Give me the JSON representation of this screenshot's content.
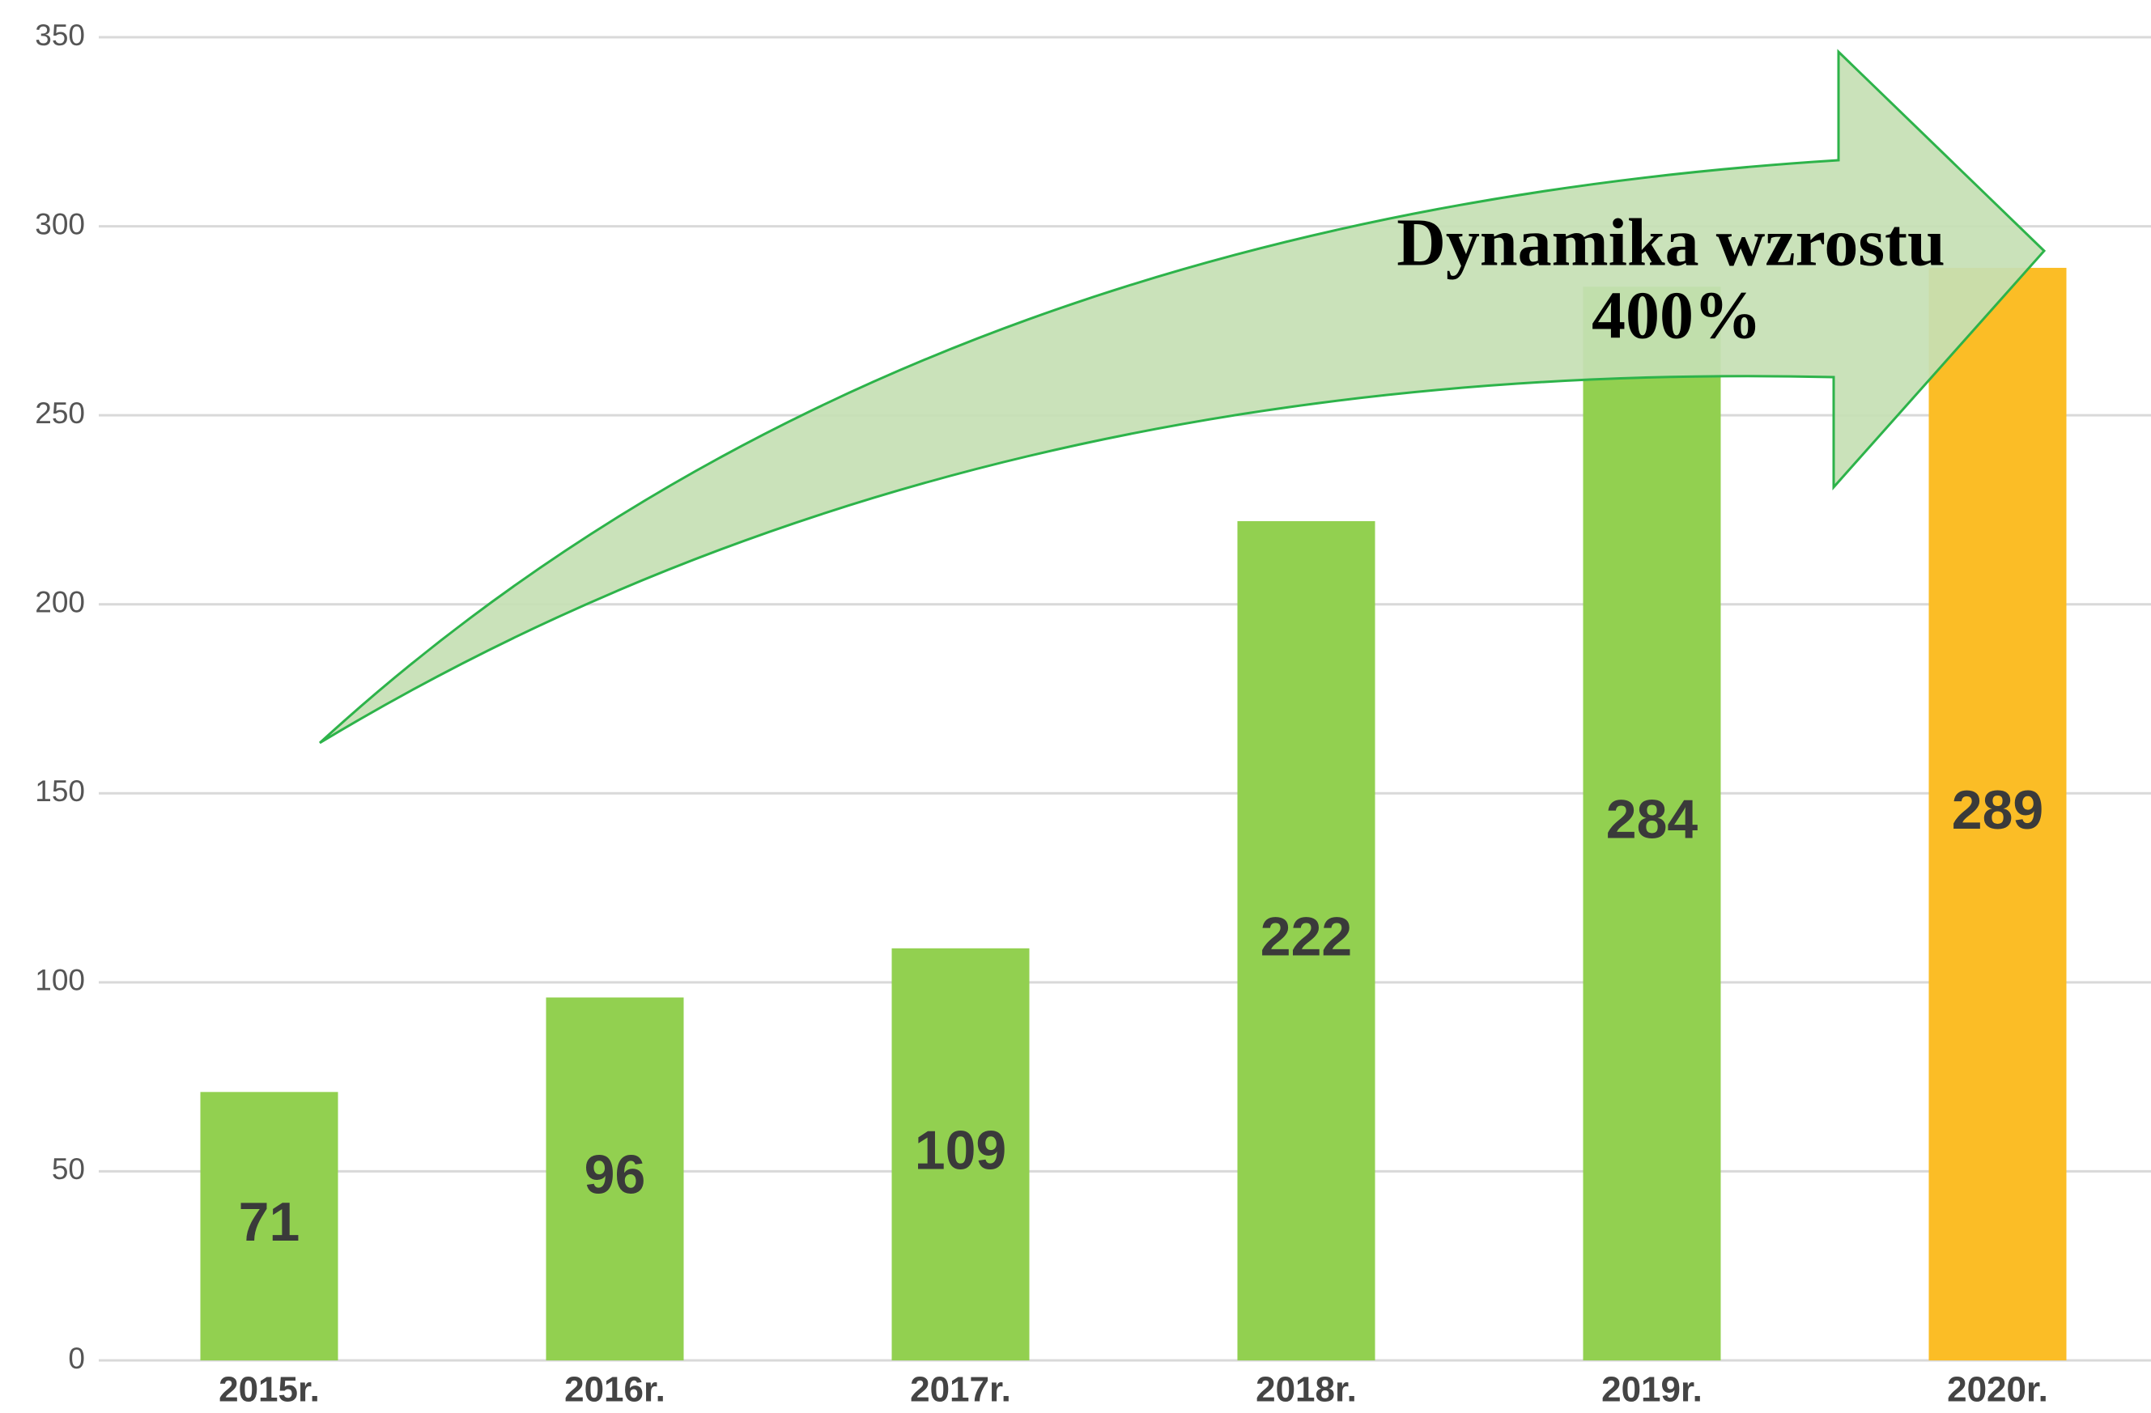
{
  "chart_data": {
    "type": "bar",
    "categories": [
      "2015r.",
      "2016r.",
      "2017r.",
      "2018r.",
      "2019r.",
      "2020r."
    ],
    "values": [
      71,
      96,
      109,
      222,
      284,
      289
    ],
    "colors": [
      "#92d050",
      "#92d050",
      "#92d050",
      "#92d050",
      "#92d050",
      "#fbbd26"
    ],
    "ylim": [
      0,
      350
    ],
    "yticks": [
      0,
      50,
      100,
      150,
      200,
      250,
      300,
      350
    ],
    "grid": true,
    "annotation": [
      "Dynamika wzrostu",
      "400%"
    ]
  }
}
